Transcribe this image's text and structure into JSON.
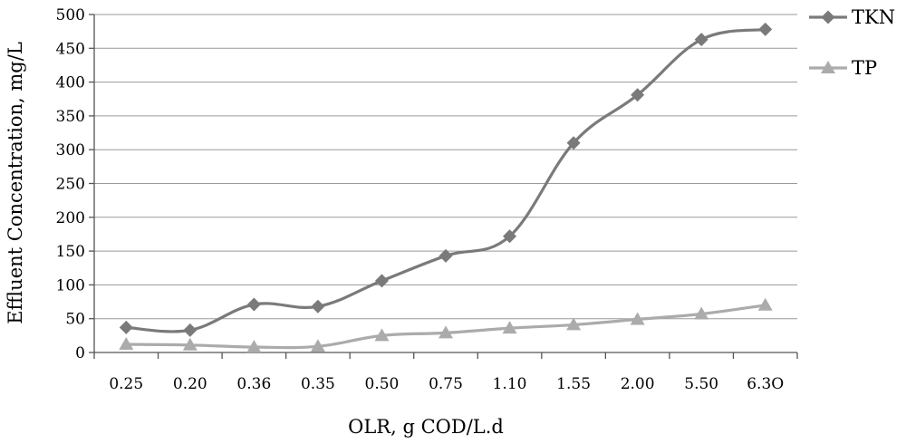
{
  "chart_data": {
    "type": "line",
    "title": "",
    "xlabel": "OLR, g COD/L.d",
    "ylabel": "Effluent Concentration, mg/L",
    "categories": [
      "0.25",
      "0.20",
      "0.36",
      "0.35",
      "0.50",
      "0.75",
      "1.10",
      "1.55",
      "2.00",
      "5.50",
      "6.3O"
    ],
    "ylim": [
      0,
      500
    ],
    "yticks": [
      "0",
      "50",
      "100",
      "150",
      "200",
      "250",
      "300",
      "350",
      "400",
      "450",
      "500"
    ],
    "grid": true,
    "legend_position": "right",
    "smooth": true,
    "series": [
      {
        "name": "TKN",
        "marker": "diamond",
        "color": "#7a7a7a",
        "values": [
          37,
          33,
          71,
          68,
          106,
          143,
          172,
          310,
          381,
          463,
          478
        ]
      },
      {
        "name": "TP",
        "marker": "triangle",
        "color": "#ababab",
        "values": [
          12,
          11,
          8,
          9,
          25,
          29,
          36,
          41,
          49,
          57,
          70
        ]
      }
    ]
  }
}
